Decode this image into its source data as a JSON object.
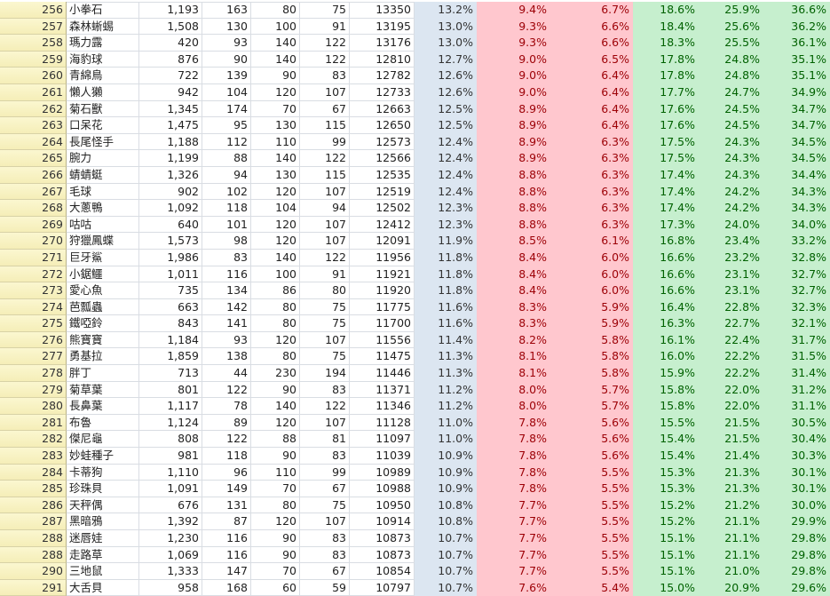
{
  "colors": {
    "blue_fill": "#dce6f1",
    "pink_fill": "#ffc7ce",
    "pink_text": "#9c0006",
    "green_fill": "#c6efce",
    "green_text": "#006100",
    "row_header": "#fbf7d0"
  },
  "rows": [
    [
      "256",
      "小拳石",
      "1,193",
      "163",
      "80",
      "75",
      "13350",
      "13.2%",
      "9.4%",
      "6.7%",
      "18.6%",
      "25.9%",
      "36.6%"
    ],
    [
      "257",
      "森林蜥蜴",
      "1,508",
      "130",
      "100",
      "91",
      "13195",
      "13.0%",
      "9.3%",
      "6.6%",
      "18.4%",
      "25.6%",
      "36.2%"
    ],
    [
      "258",
      "瑪力露",
      "420",
      "93",
      "140",
      "122",
      "13176",
      "13.0%",
      "9.3%",
      "6.6%",
      "18.3%",
      "25.5%",
      "36.1%"
    ],
    [
      "259",
      "海豹球",
      "876",
      "90",
      "140",
      "122",
      "12810",
      "12.7%",
      "9.0%",
      "6.5%",
      "17.8%",
      "24.8%",
      "35.1%"
    ],
    [
      "260",
      "青綿鳥",
      "722",
      "139",
      "90",
      "83",
      "12782",
      "12.6%",
      "9.0%",
      "6.4%",
      "17.8%",
      "24.8%",
      "35.1%"
    ],
    [
      "261",
      "懶人獺",
      "942",
      "104",
      "120",
      "107",
      "12733",
      "12.6%",
      "9.0%",
      "6.4%",
      "17.7%",
      "24.7%",
      "34.9%"
    ],
    [
      "262",
      "菊石獸",
      "1,345",
      "174",
      "70",
      "67",
      "12663",
      "12.5%",
      "8.9%",
      "6.4%",
      "17.6%",
      "24.5%",
      "34.7%"
    ],
    [
      "263",
      "口呆花",
      "1,475",
      "95",
      "130",
      "115",
      "12650",
      "12.5%",
      "8.9%",
      "6.4%",
      "17.6%",
      "24.5%",
      "34.7%"
    ],
    [
      "264",
      "長尾怪手",
      "1,188",
      "112",
      "110",
      "99",
      "12573",
      "12.4%",
      "8.9%",
      "6.3%",
      "17.5%",
      "24.3%",
      "34.5%"
    ],
    [
      "265",
      "腕力",
      "1,199",
      "88",
      "140",
      "122",
      "12566",
      "12.4%",
      "8.9%",
      "6.3%",
      "17.5%",
      "24.3%",
      "34.5%"
    ],
    [
      "266",
      "蜻蜻蜓",
      "1,326",
      "94",
      "130",
      "115",
      "12535",
      "12.4%",
      "8.8%",
      "6.3%",
      "17.4%",
      "24.3%",
      "34.4%"
    ],
    [
      "267",
      "毛球",
      "902",
      "102",
      "120",
      "107",
      "12519",
      "12.4%",
      "8.8%",
      "6.3%",
      "17.4%",
      "24.2%",
      "34.3%"
    ],
    [
      "268",
      "大蔥鴨",
      "1,092",
      "118",
      "104",
      "94",
      "12502",
      "12.3%",
      "8.8%",
      "6.3%",
      "17.4%",
      "24.2%",
      "34.3%"
    ],
    [
      "269",
      "咕咕",
      "640",
      "101",
      "120",
      "107",
      "12412",
      "12.3%",
      "8.8%",
      "6.3%",
      "17.3%",
      "24.0%",
      "34.0%"
    ],
    [
      "270",
      "狩獵鳳蝶",
      "1,573",
      "98",
      "120",
      "107",
      "12091",
      "11.9%",
      "8.5%",
      "6.1%",
      "16.8%",
      "23.4%",
      "33.2%"
    ],
    [
      "271",
      "巨牙鯊",
      "1,986",
      "83",
      "140",
      "122",
      "11956",
      "11.8%",
      "8.4%",
      "6.0%",
      "16.6%",
      "23.2%",
      "32.8%"
    ],
    [
      "272",
      "小鋸鱷",
      "1,011",
      "116",
      "100",
      "91",
      "11921",
      "11.8%",
      "8.4%",
      "6.0%",
      "16.6%",
      "23.1%",
      "32.7%"
    ],
    [
      "273",
      "愛心魚",
      "735",
      "134",
      "86",
      "80",
      "11920",
      "11.8%",
      "8.4%",
      "6.0%",
      "16.6%",
      "23.1%",
      "32.7%"
    ],
    [
      "274",
      "芭瓢蟲",
      "663",
      "142",
      "80",
      "75",
      "11775",
      "11.6%",
      "8.3%",
      "5.9%",
      "16.4%",
      "22.8%",
      "32.3%"
    ],
    [
      "275",
      "鐵啞鈴",
      "843",
      "141",
      "80",
      "75",
      "11700",
      "11.6%",
      "8.3%",
      "5.9%",
      "16.3%",
      "22.7%",
      "32.1%"
    ],
    [
      "276",
      "熊寶寶",
      "1,184",
      "93",
      "120",
      "107",
      "11556",
      "11.4%",
      "8.2%",
      "5.8%",
      "16.1%",
      "22.4%",
      "31.7%"
    ],
    [
      "277",
      "勇基拉",
      "1,859",
      "138",
      "80",
      "75",
      "11475",
      "11.3%",
      "8.1%",
      "5.8%",
      "16.0%",
      "22.2%",
      "31.5%"
    ],
    [
      "278",
      "胖丁",
      "713",
      "44",
      "230",
      "194",
      "11446",
      "11.3%",
      "8.1%",
      "5.8%",
      "15.9%",
      "22.2%",
      "31.4%"
    ],
    [
      "279",
      "菊草葉",
      "801",
      "122",
      "90",
      "83",
      "11371",
      "11.2%",
      "8.0%",
      "5.7%",
      "15.8%",
      "22.0%",
      "31.2%"
    ],
    [
      "280",
      "長鼻葉",
      "1,117",
      "78",
      "140",
      "122",
      "11346",
      "11.2%",
      "8.0%",
      "5.7%",
      "15.8%",
      "22.0%",
      "31.1%"
    ],
    [
      "281",
      "布魯",
      "1,124",
      "89",
      "120",
      "107",
      "11128",
      "11.0%",
      "7.8%",
      "5.6%",
      "15.5%",
      "21.5%",
      "30.5%"
    ],
    [
      "282",
      "傑尼龜",
      "808",
      "122",
      "88",
      "81",
      "11097",
      "11.0%",
      "7.8%",
      "5.6%",
      "15.4%",
      "21.5%",
      "30.4%"
    ],
    [
      "283",
      "妙蛙種子",
      "981",
      "118",
      "90",
      "83",
      "11039",
      "10.9%",
      "7.8%",
      "5.6%",
      "15.4%",
      "21.4%",
      "30.3%"
    ],
    [
      "284",
      "卡蒂狗",
      "1,110",
      "96",
      "110",
      "99",
      "10989",
      "10.9%",
      "7.8%",
      "5.5%",
      "15.3%",
      "21.3%",
      "30.1%"
    ],
    [
      "285",
      "珍珠貝",
      "1,091",
      "149",
      "70",
      "67",
      "10988",
      "10.9%",
      "7.8%",
      "5.5%",
      "15.3%",
      "21.3%",
      "30.1%"
    ],
    [
      "286",
      "天秤偶",
      "676",
      "131",
      "80",
      "75",
      "10950",
      "10.8%",
      "7.7%",
      "5.5%",
      "15.2%",
      "21.2%",
      "30.0%"
    ],
    [
      "287",
      "黑暗鴉",
      "1,392",
      "87",
      "120",
      "107",
      "10914",
      "10.8%",
      "7.7%",
      "5.5%",
      "15.2%",
      "21.1%",
      "29.9%"
    ],
    [
      "288",
      "迷唇娃",
      "1,230",
      "116",
      "90",
      "83",
      "10873",
      "10.7%",
      "7.7%",
      "5.5%",
      "15.1%",
      "21.1%",
      "29.8%"
    ],
    [
      "288",
      "走路草",
      "1,069",
      "116",
      "90",
      "83",
      "10873",
      "10.7%",
      "7.7%",
      "5.5%",
      "15.1%",
      "21.1%",
      "29.8%"
    ],
    [
      "290",
      "三地鼠",
      "1,333",
      "147",
      "70",
      "67",
      "10854",
      "10.7%",
      "7.7%",
      "5.5%",
      "15.1%",
      "21.0%",
      "29.8%"
    ],
    [
      "291",
      "大舌貝",
      "958",
      "168",
      "60",
      "59",
      "10797",
      "10.7%",
      "7.6%",
      "5.4%",
      "15.0%",
      "20.9%",
      "29.6%"
    ]
  ]
}
